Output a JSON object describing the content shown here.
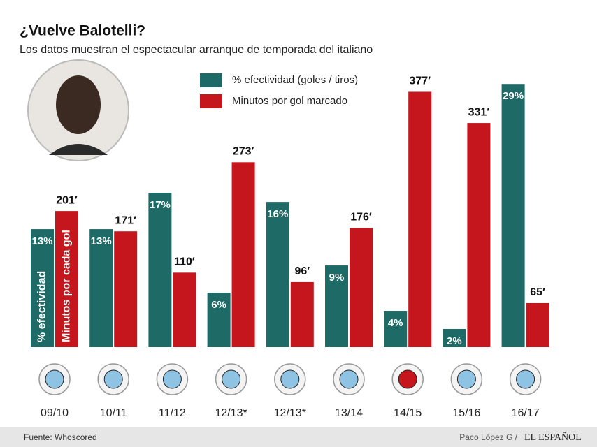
{
  "chart_data": {
    "type": "grouped-bar",
    "title": "¿Vuelve Balotelli?",
    "subtitle": "Los datos muestran el espectacular arranque de temporada del italiano",
    "categories": [
      "09/10",
      "10/11",
      "11/12",
      "12/13*",
      "12/13*",
      "13/14",
      "14/15",
      "15/16",
      "16/17"
    ],
    "series": [
      {
        "name": "% efectividad (goles / tiros)",
        "color": "#1d6a66",
        "values": [
          13,
          13,
          17,
          6,
          16,
          9,
          4,
          2,
          29
        ],
        "value_labels": [
          "13%",
          "13%",
          "17%",
          "6%",
          "16%",
          "9%",
          "4%",
          "2%",
          "29%"
        ]
      },
      {
        "name": "Minutos por gol marcado",
        "color": "#c4161c",
        "axis": "y2",
        "values": [
          201,
          171,
          110,
          273,
          96,
          176,
          377,
          331,
          65
        ],
        "value_labels": [
          "201′",
          "171′",
          "110′",
          "273′",
          "96′",
          "176′",
          "377′",
          "331′",
          "65′"
        ]
      }
    ],
    "ylim": [
      0,
      29.4
    ],
    "y2lim": [
      0,
      394
    ],
    "annotations": [
      "% efectividad",
      "Minutos por cada gol"
    ],
    "source": "Fuente: Whoscored",
    "author": "Paco López G  /",
    "brand": "EL ESPAÑOL"
  }
}
